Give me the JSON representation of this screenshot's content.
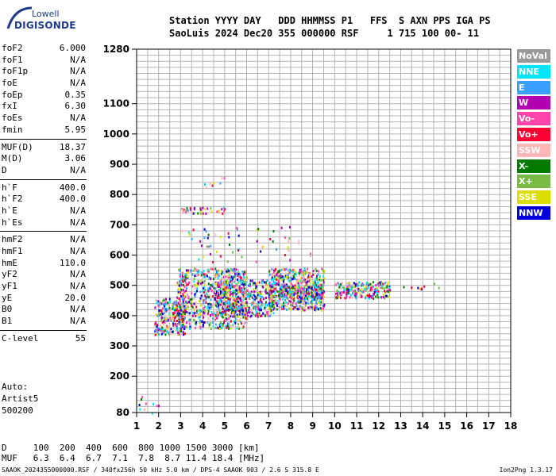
{
  "logo": {
    "line1": "Lowell",
    "line2": "DIGISONDE"
  },
  "header": {
    "line1": "Station YYYY DAY   DDD HHMMSS P1   FFS  S AXN PPS IGA PS",
    "line2": "SaoLuis 2024 Dec20 355 000000 RSF     1 715 100 00- 11"
  },
  "params": {
    "group1": [
      {
        "label": "foF2",
        "value": "6.000"
      },
      {
        "label": "foF1",
        "value": "N/A"
      },
      {
        "label": "foF1p",
        "value": "N/A"
      },
      {
        "label": "foE",
        "value": "N/A"
      },
      {
        "label": "foEp",
        "value": "0.35"
      },
      {
        "label": "fxI",
        "value": "6.30"
      },
      {
        "label": "foEs",
        "value": "N/A"
      },
      {
        "label": "fmin",
        "value": "5.95"
      }
    ],
    "group2": [
      {
        "label": "MUF(D)",
        "value": "18.37"
      },
      {
        "label": "M(D)",
        "value": "3.06"
      },
      {
        "label": "D",
        "value": "N/A"
      }
    ],
    "group3": [
      {
        "label": "h`F",
        "value": "400.0"
      },
      {
        "label": "h`F2",
        "value": "400.0"
      },
      {
        "label": "h`E",
        "value": "N/A"
      },
      {
        "label": "h`Es",
        "value": "N/A"
      }
    ],
    "group4": [
      {
        "label": "hmF2",
        "value": "N/A"
      },
      {
        "label": "hmF1",
        "value": "N/A"
      },
      {
        "label": "hmE",
        "value": "110.0"
      },
      {
        "label": "yF2",
        "value": "N/A"
      },
      {
        "label": "yF1",
        "value": "N/A"
      },
      {
        "label": "yE",
        "value": "20.0"
      },
      {
        "label": "B0",
        "value": "N/A"
      },
      {
        "label": "B1",
        "value": "N/A"
      }
    ],
    "group5": [
      {
        "label": "C-level",
        "value": "55"
      }
    ]
  },
  "auto": {
    "line1": "Auto:",
    "line2": "Artist5",
    "line3": "500200"
  },
  "legend": [
    {
      "label": "NoVal",
      "color": "#999999"
    },
    {
      "label": "NNE",
      "color": "#00e5ff"
    },
    {
      "label": "E",
      "color": "#3aa0ff"
    },
    {
      "label": "W",
      "color": "#b000b0"
    },
    {
      "label": "Vo-",
      "color": "#ff44aa"
    },
    {
      "label": "Vo+",
      "color": "#ff0033"
    },
    {
      "label": "SSW",
      "color": "#ffb6b6"
    },
    {
      "label": "X-",
      "color": "#007a00"
    },
    {
      "label": "X+",
      "color": "#77bb44"
    },
    {
      "label": "SSE",
      "color": "#dddd00"
    },
    {
      "label": "NNW",
      "color": "#0000dd"
    }
  ],
  "bottom": {
    "d_line": "D     100  200  400  600  800 1000 1500 3000 [km]",
    "muf_line": "MUF   6.3  6.4  6.7  7.1  7.8  8.7 11.4 18.4 [MHz]"
  },
  "footer": "SAAOK_2024355000000.RSF / 340fx256h 50 kHz 5.0 km / DPS-4 SAAOK 903 / 2.6 S 315.8 E",
  "version": "Ion2Png 1.3.17",
  "chart_data": {
    "type": "scatter",
    "x_ticks": [
      "1",
      "2",
      "3",
      "4",
      "5",
      "6",
      "7",
      "8",
      "9",
      "10",
      "11",
      "12",
      "13",
      "14",
      "15",
      "16",
      "17",
      "18"
    ],
    "y_ticks": [
      "80",
      "200",
      "300",
      "400",
      "500",
      "600",
      "700",
      "800",
      "900",
      "1000",
      "1100",
      "1280"
    ],
    "xlim": [
      1,
      18
    ],
    "ylim": [
      80,
      1280
    ],
    "grid": true,
    "clusters": [
      {
        "f": [
          1.8,
          3.2
        ],
        "h": [
          340,
          460
        ],
        "n": 260
      },
      {
        "f": [
          2.8,
          6.0
        ],
        "h": [
          360,
          560
        ],
        "n": 700
      },
      {
        "f": [
          4.5,
          7.2
        ],
        "h": [
          400,
          520
        ],
        "n": 420
      },
      {
        "f": [
          7.0,
          9.5
        ],
        "h": [
          420,
          560
        ],
        "n": 520
      },
      {
        "f": [
          7.5,
          9.5
        ],
        "h": [
          460,
          500
        ],
        "n": 200
      },
      {
        "f": [
          10.0,
          12.5
        ],
        "h": [
          460,
          515
        ],
        "n": 220
      },
      {
        "f": [
          12.5,
          14.8
        ],
        "h": [
          490,
          515
        ],
        "n": 10
      },
      {
        "f": [
          3.0,
          5.0
        ],
        "h": [
          740,
          760
        ],
        "n": 40
      },
      {
        "f": [
          4.0,
          5.0
        ],
        "h": [
          820,
          860
        ],
        "n": 8
      },
      {
        "f": [
          1.0,
          2.0
        ],
        "h": [
          80,
          140
        ],
        "n": 10
      },
      {
        "f": [
          3.0,
          9.0
        ],
        "h": [
          580,
          700
        ],
        "n": 60
      }
    ]
  }
}
